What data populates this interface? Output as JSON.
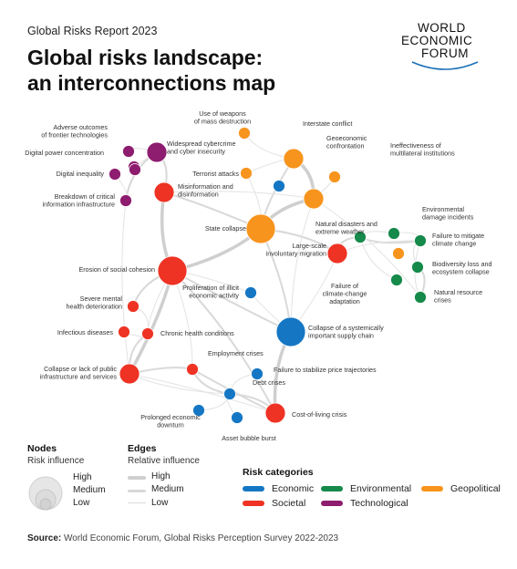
{
  "header": {
    "report": "Global Risks Report 2023",
    "title_line1": "Global risks landscape:",
    "title_line2": "an interconnections map"
  },
  "logo": {
    "line1": "WORLD",
    "line2": "ECONOMIC",
    "line3": "FORUM"
  },
  "colors": {
    "Economic": "#1577c4",
    "Societal": "#ee3324",
    "Environmental": "#158a4a",
    "Geopolitical": "#f7941d",
    "Technological": "#8e1c6f"
  },
  "nodes": [
    {
      "id": "adverse",
      "label": "Adverse outcomes\nof frontier technologies",
      "cat": "Technological",
      "influence": "low"
    },
    {
      "id": "cyber",
      "label": "Widespread cybercrime\nand cyber insecurity",
      "cat": "Technological",
      "influence": "medium"
    },
    {
      "id": "dpc",
      "label": "Digital power concentration",
      "cat": "Technological",
      "influence": "low"
    },
    {
      "id": "dineq",
      "label": "Digital inequality",
      "cat": "Technological",
      "influence": "low"
    },
    {
      "id": "cii",
      "label": "Breakdown of critical\ninformation infrastructure",
      "cat": "Technological",
      "influence": "low"
    },
    {
      "id": "misinfo",
      "label": "Misinformation and\ndisinformation",
      "cat": "Societal",
      "influence": "medium"
    },
    {
      "id": "wmd",
      "label": "Use of weapons\nof mass destruction",
      "cat": "Geopolitical",
      "influence": "low"
    },
    {
      "id": "interstate",
      "label": "Interstate conflict",
      "cat": "Geopolitical",
      "influence": "medium"
    },
    {
      "id": "geoeco",
      "label": "Geoeconomic\nconfrontation",
      "cat": "Geopolitical",
      "influence": "medium"
    },
    {
      "id": "ineff",
      "label": "Ineffectiveness of\nmultilateral institutions",
      "cat": "Geopolitical",
      "influence": "low"
    },
    {
      "id": "terror",
      "label": "Terrorist attacks",
      "cat": "Geopolitical",
      "influence": "low"
    },
    {
      "id": "statecol",
      "label": "State collapse",
      "cat": "Geopolitical",
      "influence": "high"
    },
    {
      "id": "natdis",
      "label": "Natural disasters and\nextreme weather",
      "cat": "Environmental",
      "influence": "low"
    },
    {
      "id": "envdmg",
      "label": "Environmental\ndamage incidents",
      "cat": "Environmental",
      "influence": "low"
    },
    {
      "id": "mitig",
      "label": "Failure to mitigate\nclimate change",
      "cat": "Environmental",
      "influence": "low"
    },
    {
      "id": "biodiv",
      "label": "Biodiversity loss and\necosystem collapse",
      "cat": "Environmental",
      "influence": "low"
    },
    {
      "id": "natres",
      "label": "Natural resource\ncrises",
      "cat": "Environmental",
      "influence": "low"
    },
    {
      "id": "adapt",
      "label": "Failure of\nclimate-change\nadaptation",
      "cat": "Environmental",
      "influence": "low"
    },
    {
      "id": "migr",
      "label": "Large-scale\ninvoluntary migration",
      "cat": "Societal",
      "influence": "medium"
    },
    {
      "id": "erosion",
      "label": "Erosion of social cohesion",
      "cat": "Societal",
      "influence": "high"
    },
    {
      "id": "illicit",
      "label": "Proliferation of illicit\neconomic activity",
      "cat": "Economic",
      "influence": "low"
    },
    {
      "id": "mental",
      "label": "Severe mental\nhealth deterioration",
      "cat": "Societal",
      "influence": "low"
    },
    {
      "id": "infect",
      "label": "Infectious diseases",
      "cat": "Societal",
      "influence": "low"
    },
    {
      "id": "chronic",
      "label": "Chronic health conditions",
      "cat": "Societal",
      "influence": "low"
    },
    {
      "id": "supply",
      "label": "Collapse of a systemically\nimportant supply chain",
      "cat": "Economic",
      "influence": "high"
    },
    {
      "id": "employ",
      "label": "Employment crises",
      "cat": "Societal",
      "influence": "low"
    },
    {
      "id": "infra",
      "label": "Collapse or lack of public\ninfrastructure and services",
      "cat": "Societal",
      "influence": "medium"
    },
    {
      "id": "price",
      "label": "Failure to stabilize price trajectories",
      "cat": "Economic",
      "influence": "low"
    },
    {
      "id": "debt",
      "label": "Debt crises",
      "cat": "Economic",
      "influence": "low"
    },
    {
      "id": "col",
      "label": "Cost-of-living crisis",
      "cat": "Societal",
      "influence": "medium"
    },
    {
      "id": "downturn",
      "label": "Prolonged economic\ndownturn",
      "cat": "Economic",
      "influence": "low"
    },
    {
      "id": "bubble",
      "label": "Asset bubble burst",
      "cat": "Economic",
      "influence": "low"
    },
    {
      "id": "small1",
      "label": "",
      "cat": "Economic",
      "influence": "low"
    },
    {
      "id": "small2",
      "label": "",
      "cat": "Geopolitical",
      "influence": "low"
    },
    {
      "id": "small3",
      "label": "",
      "cat": "Technological",
      "influence": "low"
    }
  ],
  "legend": {
    "nodes_title": "Nodes",
    "nodes_sub": "Risk influence",
    "nodes_high": "High",
    "nodes_medium": "Medium",
    "nodes_low": "Low",
    "edges_title": "Edges",
    "edges_sub": "Relative influence",
    "edges_high": "High",
    "edges_medium": "Medium",
    "edges_low": "Low",
    "cat_title": "Risk categories",
    "cat_economic": "Economic",
    "cat_environmental": "Environmental",
    "cat_geopolitical": "Geopolitical",
    "cat_societal": "Societal",
    "cat_technological": "Technological"
  },
  "source": {
    "label": "Source:",
    "text": "World Economic Forum, Global Risks Perception Survey 2022-2023"
  }
}
